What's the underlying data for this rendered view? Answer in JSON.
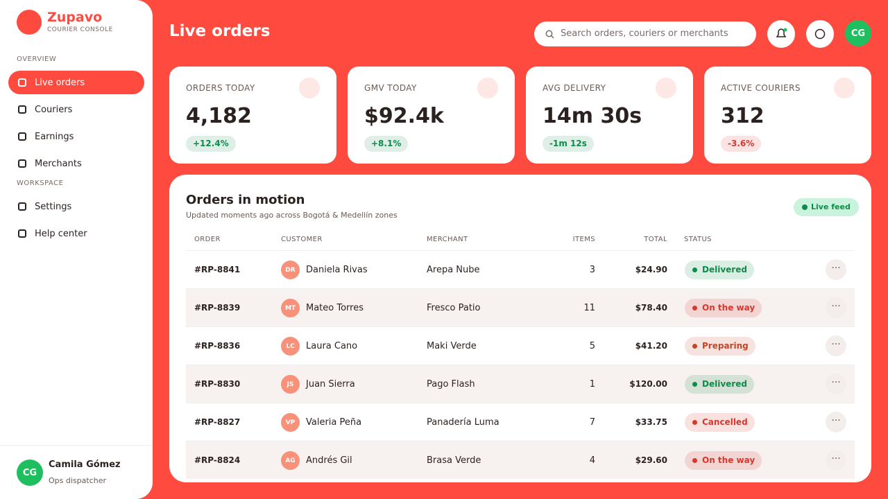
{
  "brand": {
    "name": "Zupavo",
    "tagline": "COURIER CONSOLE"
  },
  "nav": {
    "sections": [
      {
        "label": "OVERVIEW",
        "items": [
          "Live orders",
          "Couriers",
          "Earnings",
          "Merchants"
        ]
      },
      {
        "label": "WORKSPACE",
        "items": [
          "Settings",
          "Help center"
        ]
      }
    ]
  },
  "user": {
    "initials": "CG",
    "name": "Camila Gómez",
    "role": "Ops dispatcher"
  },
  "header": {
    "title": "Live orders",
    "search_placeholder": "Search orders, couriers or merchants",
    "avatar": "CG"
  },
  "kpis": [
    {
      "label": "ORDERS TODAY",
      "value": "4,182",
      "delta": "+12.4%",
      "color": "#0e8a4a"
    },
    {
      "label": "GMV TODAY",
      "value": "$92.4k",
      "delta": "+8.1%",
      "color": "#0e8a4a"
    },
    {
      "label": "AVG DELIVERY",
      "value": "14m 30s",
      "delta": "-1m 12s",
      "color": "#0e8a4a"
    },
    {
      "label": "ACTIVE COURIERS",
      "value": "312",
      "delta": "-3.6%",
      "color": "#d9362c"
    }
  ],
  "orders": {
    "title": "Orders in motion",
    "subtitle": "Updated moments ago across Bogotá & Medellín zones",
    "badge": "Live feed",
    "columns": [
      "ORDER",
      "CUSTOMER",
      "MERCHANT",
      "ITEMS",
      "TOTAL",
      "STATUS"
    ],
    "rows": [
      {
        "order": "#RP-8841",
        "initials": "DR",
        "customer": "Daniela Rivas",
        "merchant": "Arepa Nube",
        "items": "3",
        "total": "$24.90",
        "status": "Delivered",
        "color": "#0e8a4a"
      },
      {
        "order": "#RP-8839",
        "initials": "MT",
        "customer": "Mateo Torres",
        "merchant": "Fresco Patio",
        "items": "11",
        "total": "$78.40",
        "status": "On the way",
        "color": "#d9362c"
      },
      {
        "order": "#RP-8836",
        "initials": "LC",
        "customer": "Laura Cano",
        "merchant": "Maki Verde",
        "items": "5",
        "total": "$41.20",
        "status": "Preparing",
        "color": "#c2462a"
      },
      {
        "order": "#RP-8830",
        "initials": "JS",
        "customer": "Juan Sierra",
        "merchant": "Pago Flash",
        "items": "1",
        "total": "$120.00",
        "status": "Delivered",
        "color": "#0e8a4a"
      },
      {
        "order": "#RP-8827",
        "initials": "VP",
        "customer": "Valeria Peña",
        "merchant": "Panadería Luma",
        "items": "7",
        "total": "$33.75",
        "status": "Cancelled",
        "color": "#d9362c"
      },
      {
        "order": "#RP-8824",
        "initials": "AG",
        "customer": "Andrés Gil",
        "merchant": "Brasa Verde",
        "items": "4",
        "total": "$29.60",
        "status": "On the way",
        "color": "#d9362c"
      }
    ]
  }
}
